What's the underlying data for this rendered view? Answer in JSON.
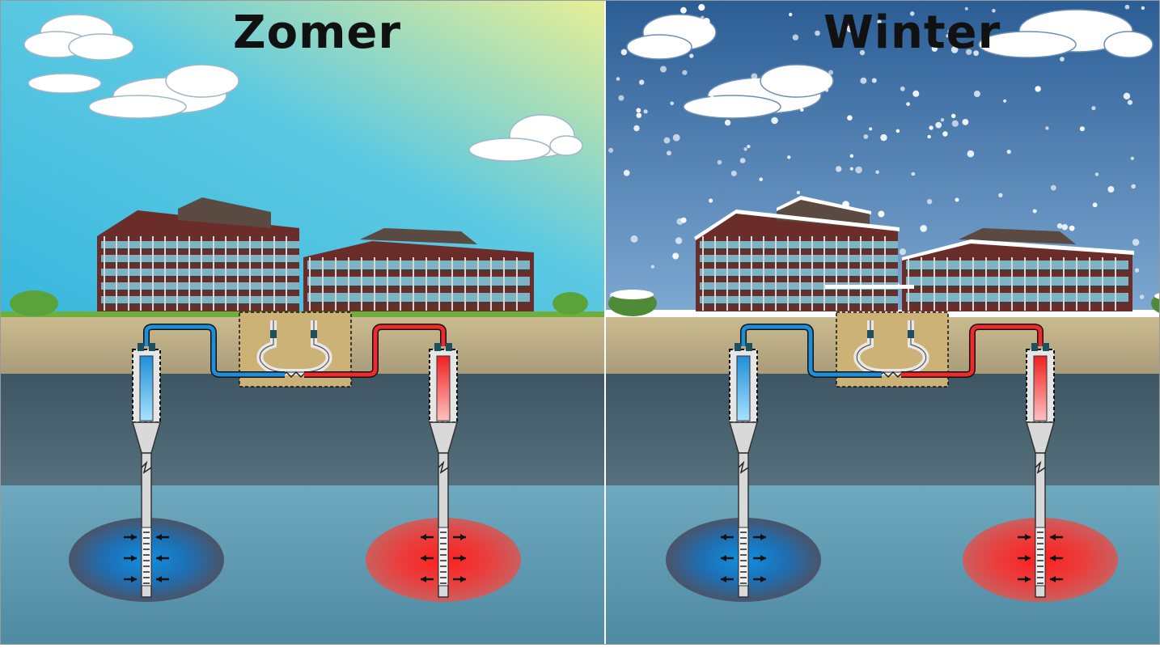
{
  "panels": {
    "summer": {
      "title": "Zomer",
      "sky_top": "#5cc6de",
      "sky_bottom": "#e4eb99"
    },
    "winter": {
      "title": "Winter",
      "sky_top": "#2f5f96",
      "sky_bottom": "#7aa6cf"
    }
  },
  "colors": {
    "cold": "#1e8ed8",
    "warm": "#ef2a2a",
    "soil_top": "#c5b48a",
    "rock": "#4d6573",
    "aquifer": "#6aa7be",
    "exchanger_box": "#cdb277",
    "grass": "#6fae3d",
    "snow": "#ffffff"
  },
  "flows": {
    "summer": {
      "cold_well": "inward",
      "warm_well": "outward"
    },
    "winter": {
      "cold_well": "outward",
      "warm_well": "inward"
    }
  }
}
